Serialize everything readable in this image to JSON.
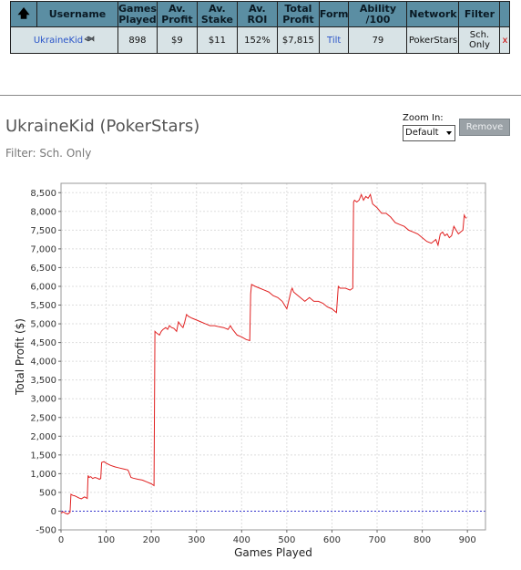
{
  "table": {
    "sort_icon": "up-arrow-icon",
    "headers": {
      "username": "Username",
      "games_played": "Games Played",
      "av_profit": "Av. Profit",
      "av_stake": "Av. Stake",
      "av_roi": "Av. ROI",
      "total_profit": "Total Profit",
      "form": "Form",
      "ability": "Ability /100",
      "network": "Network",
      "filter": "Filter"
    },
    "row": {
      "username": "UkraineKid",
      "badge_icon": "fish-icon",
      "games_played": "898",
      "av_profit": "$9",
      "av_stake": "$11",
      "av_roi": "152%",
      "total_profit": "$7,815",
      "form": "Tilt",
      "ability": "79",
      "network": "PokerStars",
      "filter": "Sch. Only",
      "remove": "x"
    }
  },
  "player": {
    "title": "UkraineKid (PokerStars)",
    "filter_text": "Filter: Sch. Only"
  },
  "controls": {
    "zoom_label": "Zoom In:",
    "zoom_value": "Default",
    "remove_label": "Remove"
  },
  "colors": {
    "header_bg": "#5b8ea3",
    "row_bg": "#d8e3e6",
    "line": "#e02020",
    "zero_line": "#3333cc"
  },
  "chart_data": {
    "type": "line",
    "xlabel": "Games Played",
    "ylabel": "Total Profit ($)",
    "xlim": [
      0,
      940
    ],
    "ylim": [
      -500,
      8750
    ],
    "x_ticks": [
      0,
      100,
      200,
      300,
      400,
      500,
      600,
      700,
      800,
      900
    ],
    "y_ticks": [
      -500,
      0,
      500,
      1000,
      1500,
      2000,
      2500,
      3000,
      3500,
      4000,
      4500,
      5000,
      5500,
      6000,
      6500,
      7000,
      7500,
      8000,
      8500
    ],
    "y_tick_labels": [
      "-500",
      "0",
      "500",
      "1,000",
      "1,500",
      "2,000",
      "2,500",
      "3,000",
      "3,500",
      "4,000",
      "4,500",
      "5,000",
      "5,500",
      "6,000",
      "6,500",
      "7,000",
      "7,500",
      "8,000",
      "8,500"
    ],
    "grid": true,
    "series": [
      {
        "x": [
          0,
          5,
          10,
          15,
          20,
          22,
          26,
          30,
          35,
          40,
          45,
          52,
          58,
          60,
          62,
          66,
          70,
          75,
          80,
          85,
          88,
          90,
          95,
          100,
          110,
          120,
          130,
          140,
          148,
          150,
          155,
          160,
          170,
          180,
          190,
          200,
          206,
          208,
          212,
          218,
          222,
          226,
          232,
          236,
          240,
          245,
          250,
          256,
          260,
          266,
          270,
          274,
          278,
          282,
          290,
          300,
          310,
          320,
          330,
          340,
          350,
          360,
          370,
          375,
          380,
          390,
          400,
          410,
          418,
          420,
          422,
          430,
          440,
          450,
          460,
          470,
          480,
          490,
          500,
          510,
          512,
          515,
          520,
          530,
          540,
          550,
          560,
          570,
          580,
          590,
          600,
          610,
          614,
          618,
          620,
          630,
          640,
          646,
          648,
          650,
          655,
          660,
          665,
          670,
          675,
          680,
          685,
          690,
          700,
          710,
          720,
          730,
          740,
          750,
          760,
          770,
          780,
          790,
          800,
          810,
          820,
          830,
          835,
          840,
          845,
          850,
          855,
          860,
          865,
          870,
          875,
          880,
          885,
          890,
          893,
          895,
          898
        ],
        "y": [
          -50,
          -20,
          -60,
          -80,
          -30,
          450,
          420,
          410,
          380,
          350,
          330,
          380,
          340,
          950,
          900,
          920,
          870,
          900,
          880,
          850,
          870,
          1300,
          1320,
          1280,
          1220,
          1180,
          1150,
          1120,
          1100,
          1050,
          900,
          880,
          850,
          830,
          780,
          730,
          680,
          4800,
          4750,
          4700,
          4800,
          4850,
          4900,
          4850,
          4950,
          4900,
          4880,
          4800,
          5050,
          4950,
          4900,
          5050,
          5250,
          5200,
          5150,
          5100,
          5050,
          5000,
          4950,
          4950,
          4920,
          4900,
          4850,
          4950,
          4850,
          4700,
          4650,
          4580,
          4550,
          5800,
          6050,
          6000,
          5950,
          5900,
          5850,
          5750,
          5700,
          5600,
          5400,
          5900,
          5950,
          5850,
          5800,
          5700,
          5600,
          5700,
          5600,
          5600,
          5550,
          5450,
          5400,
          5300,
          6000,
          5950,
          5950,
          5950,
          5900,
          5950,
          8250,
          8300,
          8250,
          8300,
          8450,
          8300,
          8400,
          8350,
          8450,
          8200,
          8100,
          7950,
          7950,
          7850,
          7700,
          7650,
          7600,
          7500,
          7450,
          7400,
          7300,
          7200,
          7150,
          7250,
          7100,
          7400,
          7450,
          7350,
          7400,
          7300,
          7350,
          7600,
          7500,
          7400,
          7450,
          7500,
          7900,
          7850,
          7815
        ]
      }
    ]
  }
}
